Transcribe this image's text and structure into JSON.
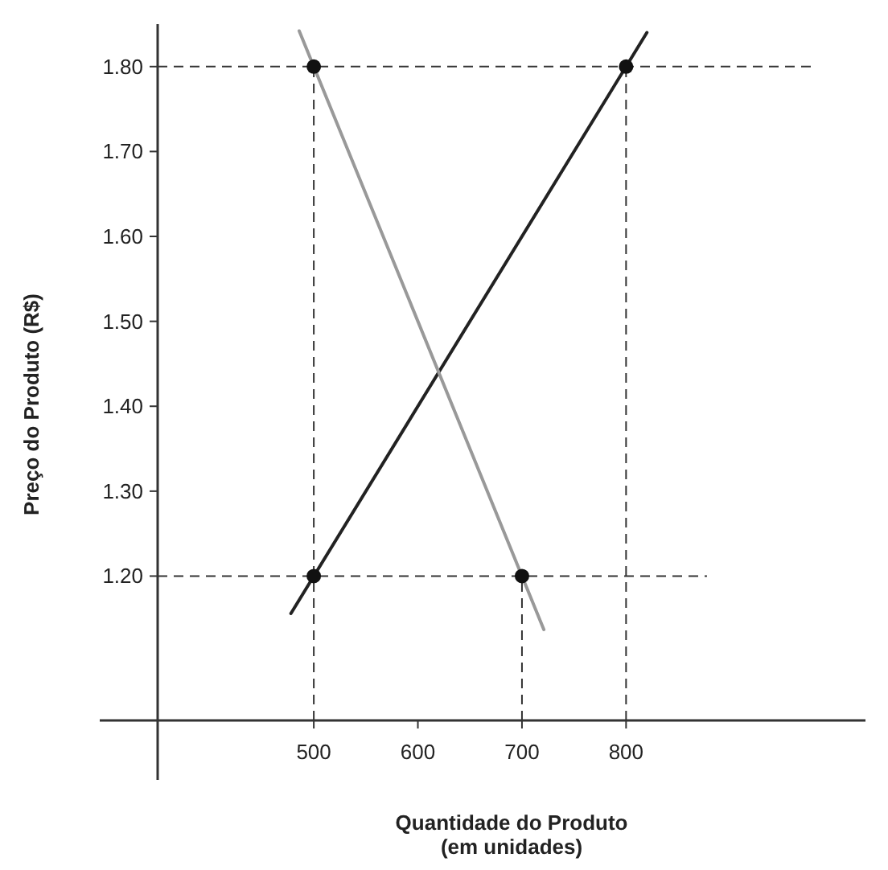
{
  "chart_data": {
    "type": "line",
    "xlabel": "Quantidade do Produto\n(em unidades)",
    "ylabel": "Preço do Produto (R$)",
    "xlim": [
      350,
      1030
    ],
    "ylim": [
      1.03,
      1.85
    ],
    "xticks": [
      500,
      600,
      700,
      800
    ],
    "yticks": [
      {
        "value": 1.2,
        "label": "1.20"
      },
      {
        "value": 1.3,
        "label": "1.30"
      },
      {
        "value": 1.4,
        "label": "1.40"
      },
      {
        "value": 1.5,
        "label": "1.50"
      },
      {
        "value": 1.6,
        "label": "1.60"
      },
      {
        "value": 1.7,
        "label": "1.70"
      },
      {
        "value": 1.8,
        "label": "1.80"
      }
    ],
    "series": [
      {
        "color": "#222222",
        "x": [
          478,
          820
        ],
        "values": [
          1.156,
          1.84
        ]
      },
      {
        "color": "#999999",
        "x": [
          486,
          721
        ],
        "values": [
          1.842,
          1.137
        ]
      },
      {
        "type": "scatter",
        "color": "#111111",
        "marker": "circle",
        "x": [
          500,
          800,
          500,
          700
        ],
        "values": [
          1.8,
          1.8,
          1.2,
          1.2
        ]
      }
    ],
    "ref_lines": [
      {
        "axis": "y",
        "value": 1.8,
        "line_style": "dashed",
        "color": "#333333"
      },
      {
        "axis": "y",
        "value": 1.2,
        "line_style": "dashed",
        "color": "#333333"
      },
      {
        "axis": "x",
        "value": 500,
        "line_style": "dashed",
        "color": "#333333"
      },
      {
        "axis": "x",
        "value": 700,
        "line_style": "dashed",
        "color": "#333333"
      },
      {
        "axis": "x",
        "value": 800,
        "line_style": "dashed",
        "color": "#333333"
      }
    ],
    "grid": false
  }
}
